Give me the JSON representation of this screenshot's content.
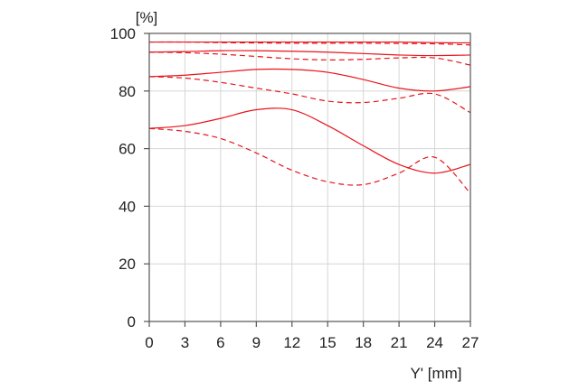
{
  "chart_data": {
    "type": "line",
    "title": "",
    "xlabel": "Y' [mm]",
    "ylabel": "[%]",
    "xlim": [
      0,
      27
    ],
    "ylim": [
      0,
      100
    ],
    "xticks": [
      0,
      3,
      6,
      9,
      12,
      15,
      18,
      21,
      24,
      27
    ],
    "yticks": [
      0,
      20,
      40,
      60,
      80,
      100
    ],
    "grid": true,
    "legend": "none",
    "line_color": "#e8141b",
    "series": [
      {
        "style": "solid",
        "x": [
          0,
          3,
          6,
          9,
          12,
          15,
          18,
          21,
          24,
          27
        ],
        "y": [
          97,
          97,
          97,
          97,
          97,
          97,
          97,
          97,
          96.8,
          96.7
        ]
      },
      {
        "style": "dashed",
        "x": [
          0,
          3,
          6,
          9,
          12,
          15,
          18,
          21,
          24,
          27
        ],
        "y": [
          97,
          97,
          96.8,
          96.7,
          96.6,
          96.6,
          96.6,
          96.5,
          96.4,
          96
        ]
      },
      {
        "style": "solid",
        "x": [
          0,
          3,
          6,
          9,
          12,
          15,
          18,
          21,
          24,
          27
        ],
        "y": [
          93.5,
          93.7,
          94,
          94,
          93.8,
          93.5,
          93,
          92.5,
          92.3,
          92.5
        ]
      },
      {
        "style": "dashed",
        "x": [
          0,
          3,
          6,
          9,
          12,
          15,
          18,
          21,
          24,
          27
        ],
        "y": [
          93.5,
          93.3,
          92.8,
          92,
          91.2,
          90.8,
          91,
          91.5,
          91.5,
          89
        ]
      },
      {
        "style": "solid",
        "x": [
          0,
          3,
          6,
          9,
          12,
          15,
          18,
          21,
          24,
          27
        ],
        "y": [
          85,
          85.5,
          86.5,
          87.5,
          87.5,
          86.5,
          84,
          81,
          80,
          81.5
        ]
      },
      {
        "style": "dashed",
        "x": [
          0,
          3,
          6,
          9,
          12,
          15,
          18,
          21,
          24,
          27
        ],
        "y": [
          85,
          84.5,
          83,
          81,
          79,
          76.5,
          76,
          77.5,
          79,
          72.5
        ]
      },
      {
        "style": "solid",
        "x": [
          0,
          3,
          6,
          9,
          12,
          15,
          18,
          21,
          24,
          27
        ],
        "y": [
          67,
          68,
          70.5,
          73.5,
          73.5,
          68,
          61,
          54.5,
          51.5,
          54.5
        ]
      },
      {
        "style": "dashed",
        "x": [
          0,
          3,
          6,
          9,
          12,
          15,
          18,
          21,
          24,
          27
        ],
        "y": [
          67,
          66,
          63.5,
          58.5,
          52.5,
          48.5,
          47.5,
          51.5,
          57,
          44.5
        ]
      }
    ]
  }
}
